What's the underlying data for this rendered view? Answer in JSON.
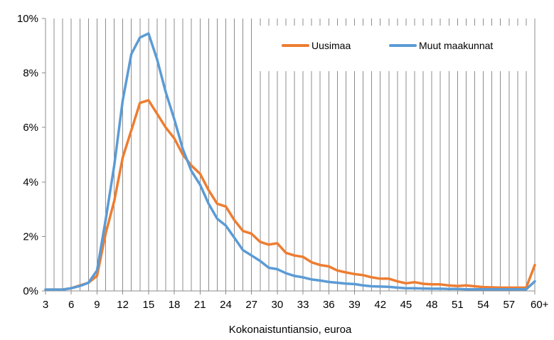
{
  "chart_data": {
    "type": "line",
    "title": "",
    "xlabel": "Kokonaistuntiansio, euroa",
    "ylabel": "",
    "xlim": [
      3,
      60
    ],
    "ylim": [
      0,
      10
    ],
    "y_unit": "%",
    "x_ticks": [
      "3",
      "6",
      "9",
      "12",
      "15",
      "18",
      "21",
      "24",
      "27",
      "30",
      "33",
      "36",
      "39",
      "42",
      "45",
      "48",
      "51",
      "54",
      "57",
      "60+"
    ],
    "y_ticks": [
      "0%",
      "2%",
      "4%",
      "6%",
      "8%",
      "10%"
    ],
    "grid": "vertical",
    "legend_position": "top-right",
    "x": [
      3,
      4,
      5,
      6,
      7,
      8,
      9,
      10,
      11,
      12,
      13,
      14,
      15,
      16,
      17,
      18,
      19,
      20,
      21,
      22,
      23,
      24,
      25,
      26,
      27,
      28,
      29,
      30,
      31,
      32,
      33,
      34,
      35,
      36,
      37,
      38,
      39,
      40,
      41,
      42,
      43,
      44,
      45,
      46,
      47,
      48,
      49,
      50,
      51,
      52,
      53,
      54,
      55,
      56,
      57,
      58,
      59,
      60
    ],
    "series": [
      {
        "name": "Uusimaa",
        "color": "#ED7D31",
        "values": [
          0.05,
          0.05,
          0.05,
          0.1,
          0.2,
          0.3,
          0.55,
          2.1,
          3.3,
          4.9,
          5.9,
          6.9,
          7.0,
          6.5,
          6.0,
          5.6,
          5.0,
          4.6,
          4.3,
          3.7,
          3.2,
          3.1,
          2.6,
          2.2,
          2.1,
          1.8,
          1.7,
          1.75,
          1.4,
          1.3,
          1.25,
          1.05,
          0.95,
          0.9,
          0.75,
          0.68,
          0.62,
          0.58,
          0.5,
          0.45,
          0.45,
          0.35,
          0.28,
          0.32,
          0.26,
          0.24,
          0.24,
          0.2,
          0.18,
          0.2,
          0.17,
          0.14,
          0.13,
          0.12,
          0.12,
          0.12,
          0.12,
          0.95
        ]
      },
      {
        "name": "Muut maakunnat",
        "color": "#5B9BD5",
        "values": [
          0.05,
          0.05,
          0.05,
          0.1,
          0.18,
          0.3,
          0.75,
          2.6,
          4.6,
          7.0,
          8.7,
          9.3,
          9.45,
          8.5,
          7.3,
          6.3,
          5.2,
          4.4,
          3.9,
          3.2,
          2.65,
          2.4,
          1.95,
          1.5,
          1.3,
          1.1,
          0.85,
          0.8,
          0.65,
          0.55,
          0.5,
          0.42,
          0.38,
          0.33,
          0.3,
          0.27,
          0.25,
          0.2,
          0.17,
          0.16,
          0.15,
          0.12,
          0.1,
          0.1,
          0.09,
          0.08,
          0.08,
          0.07,
          0.07,
          0.06,
          0.06,
          0.06,
          0.06,
          0.06,
          0.06,
          0.06,
          0.06,
          0.35
        ]
      }
    ]
  }
}
